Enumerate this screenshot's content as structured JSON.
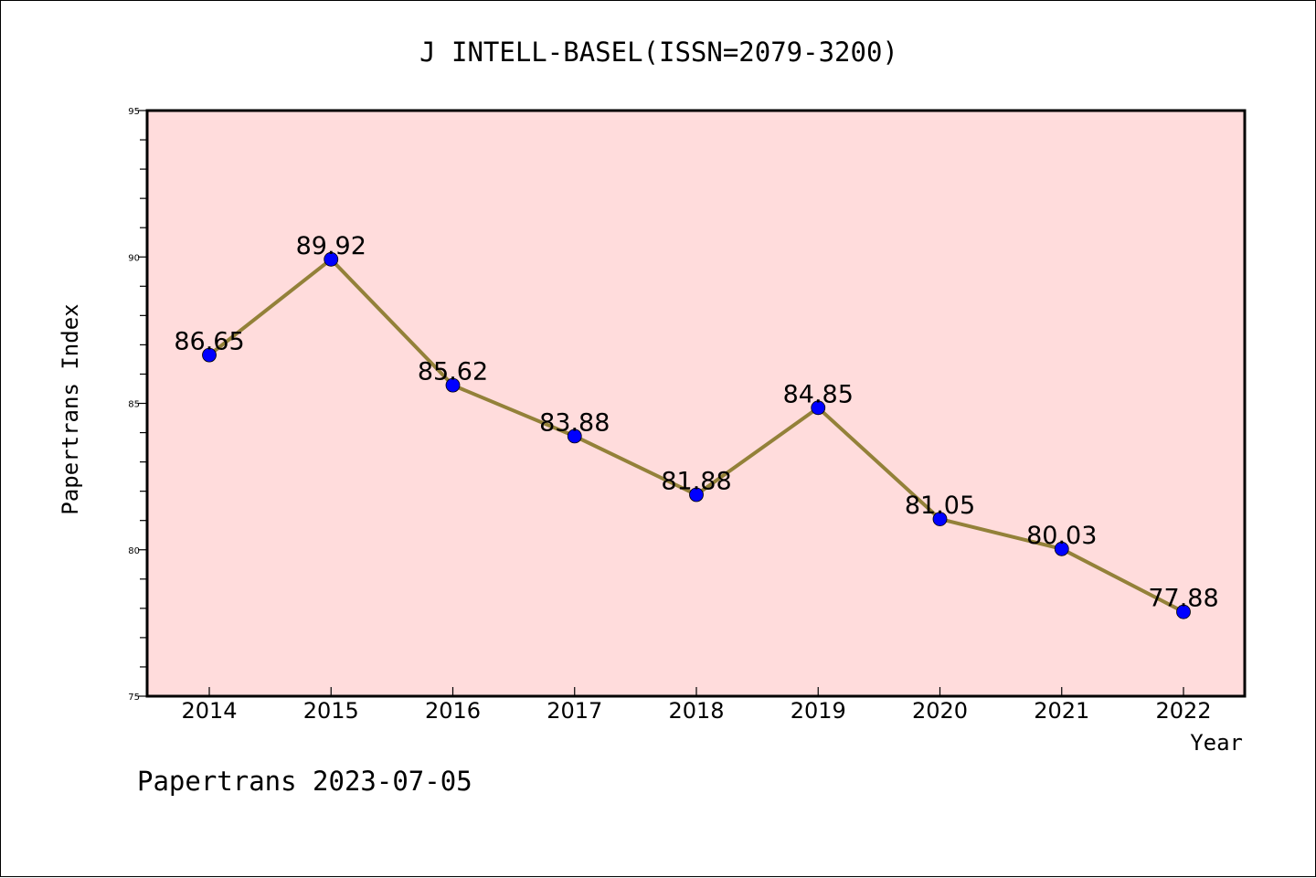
{
  "chart_data": {
    "type": "line",
    "title": "J INTELL-BASEL(ISSN=2079-3200)",
    "xlabel": "Year",
    "ylabel": "Papertrans Index",
    "ylim": [
      75,
      95
    ],
    "yticks": [
      75,
      80,
      85,
      90,
      95
    ],
    "categories": [
      "2014",
      "2015",
      "2016",
      "2017",
      "2018",
      "2019",
      "2020",
      "2021",
      "2022"
    ],
    "values": [
      86.65,
      89.92,
      85.62,
      83.88,
      81.88,
      84.85,
      81.05,
      80.03,
      77.88
    ],
    "data_labels": [
      "86.65",
      "89.92",
      "85.62",
      "83.88",
      "81.88",
      "84.85",
      "81.05",
      "80.03",
      "77.88"
    ],
    "grid": false,
    "footer": "Papertrans 2023-07-05",
    "colors": {
      "plot_background": "#ffdcdc",
      "line": "#938139",
      "marker": "#0000ff"
    }
  }
}
